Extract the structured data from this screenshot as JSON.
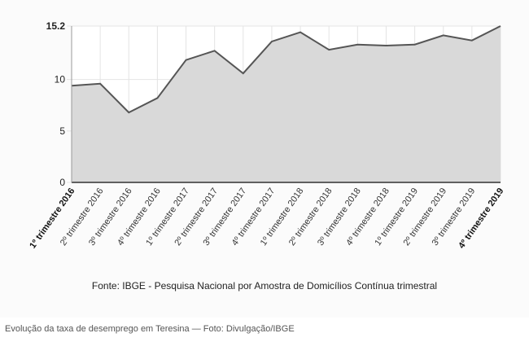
{
  "chart_data": {
    "type": "area",
    "title": "",
    "xlabel": "",
    "ylabel": "",
    "ylim": [
      0,
      15.2
    ],
    "yticks": [
      "0",
      "5",
      "10",
      "15.2"
    ],
    "categories": [
      "1º trimestre 2016",
      "2º trimestre 2016",
      "3º trimestre 2016",
      "4º trimestre 2016",
      "1º trimestre 2017",
      "2º trimestre 2017",
      "3º trimestre 2017",
      "4º trimestre 2017",
      "1º trimestre 2018",
      "2º trimestre 2018",
      "3º trimestre 2018",
      "4º trimestre 2018",
      "1º trimestre 2019",
      "2º trimestre 2019",
      "3º trimestre 2019",
      "4º trimestre 2019"
    ],
    "bold_categories": [
      "1º trimestre 2016",
      "4º trimestre 2019"
    ],
    "values": [
      9.4,
      9.6,
      6.8,
      8.2,
      11.9,
      12.8,
      10.6,
      13.7,
      14.6,
      12.9,
      13.4,
      13.3,
      13.4,
      14.3,
      13.8,
      15.2
    ],
    "grid": true,
    "fill_color": "#d9d9d9",
    "line_color": "#555555"
  },
  "source_note": "Fonte: IBGE - Pesquisa Nacional por Amostra de Domicílios Contínua trimestral",
  "caption": "Evolução da taxa de desemprego em Teresina — Foto: Divulgação/IBGE"
}
